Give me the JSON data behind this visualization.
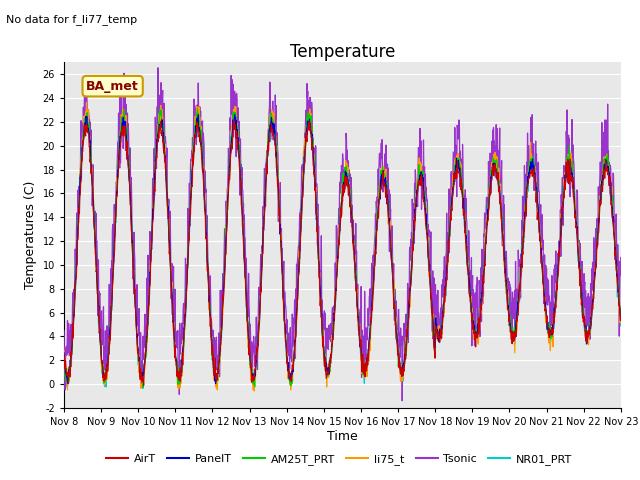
{
  "title": "Temperature",
  "ylabel": "Temperatures (C)",
  "xlabel": "Time",
  "annotation_text": "No data for f_li77_temp",
  "legend_label_text": "BA_met",
  "ylim": [
    -2,
    27
  ],
  "yticks": [
    -2,
    0,
    2,
    4,
    6,
    8,
    10,
    12,
    14,
    16,
    18,
    20,
    22,
    24,
    26
  ],
  "xtick_labels": [
    "Nov 8",
    "Nov 9",
    "Nov 10",
    "Nov 11",
    "Nov 12",
    "Nov 13",
    "Nov 14",
    "Nov 15",
    "Nov 16",
    "Nov 17",
    "Nov 18",
    "Nov 19",
    "Nov 20",
    "Nov 21",
    "Nov 22",
    "Nov 23"
  ],
  "series_colors": {
    "AirT": "#cc0000",
    "PanelT": "#0000cc",
    "AM25T_PRT": "#00cc00",
    "li75_t": "#ff9900",
    "Tsonic": "#9933cc",
    "NR01_PRT": "#00cccc"
  },
  "background_color": "#e8e8e8",
  "grid_color": "#ffffff",
  "title_fontsize": 12,
  "axis_fontsize": 9,
  "tick_fontsize": 7,
  "legend_fontsize": 8
}
